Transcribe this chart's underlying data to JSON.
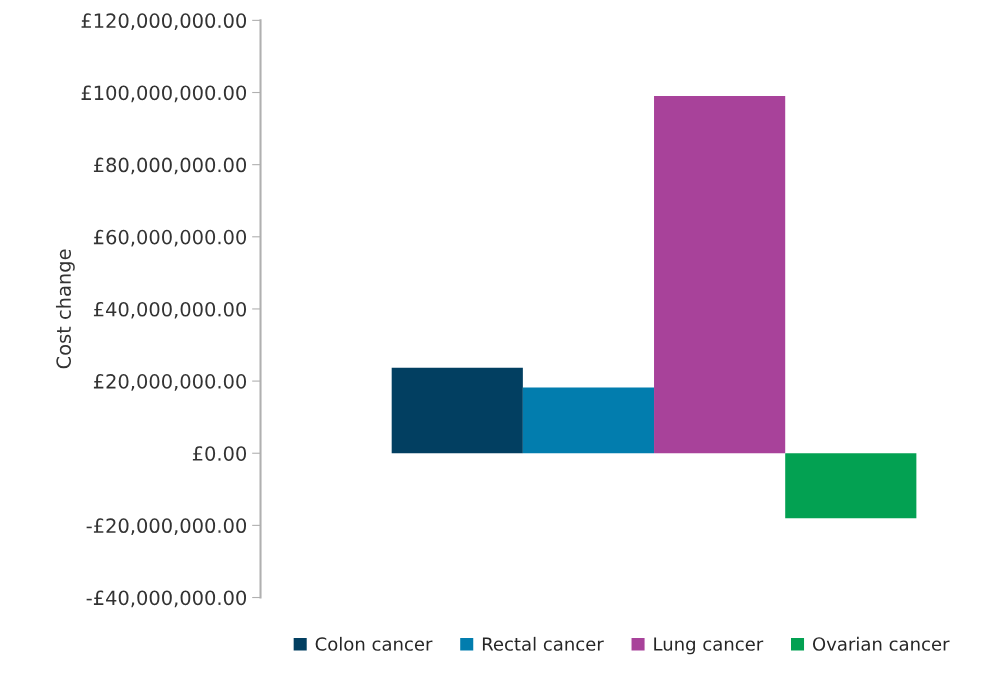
{
  "chart_data": {
    "type": "bar",
    "ylabel": "Cost change",
    "categories": [
      null
    ],
    "series": [
      {
        "name": "Colon cancer",
        "color": "#023f61",
        "values": [
          23700000
        ]
      },
      {
        "name": "Rectal cancer",
        "color": "#027dae",
        "values": [
          18200000
        ]
      },
      {
        "name": "Lung cancer",
        "color": "#a8429a",
        "values": [
          99000000
        ]
      },
      {
        "name": "Ovarian cancer",
        "color": "#03a152",
        "values": [
          -18000000
        ]
      }
    ],
    "ylim": [
      -40000000,
      120000000
    ],
    "yticks": [
      {
        "value": -40000000,
        "label": "-£40,000,000.00"
      },
      {
        "value": -20000000,
        "label": "-£20,000,000.00"
      },
      {
        "value": 0,
        "label": "£0.00"
      },
      {
        "value": 20000000,
        "label": "£20,000,000.00"
      },
      {
        "value": 40000000,
        "label": "£40,000,000.00"
      },
      {
        "value": 60000000,
        "label": "£60,000,000.00"
      },
      {
        "value": 80000000,
        "label": "£80,000,000.00"
      },
      {
        "value": 100000000,
        "label": "£100,000,000.00"
      },
      {
        "value": 120000000,
        "label": "£120,000,000.00"
      }
    ],
    "grid": false,
    "legend": "bottom"
  }
}
